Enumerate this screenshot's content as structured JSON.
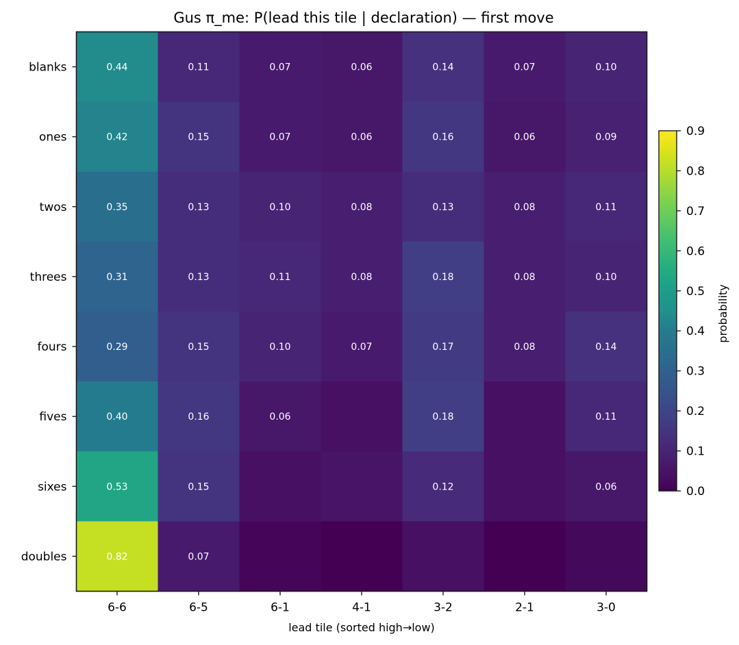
{
  "chart_data": {
    "type": "heatmap",
    "title": "Gus π_me: P(lead this tile | declaration) — first move",
    "xlabel": "lead tile (sorted high→low)",
    "ylabel": "",
    "x_categories": [
      "6-6",
      "6-5",
      "6-1",
      "4-1",
      "3-2",
      "2-1",
      "3-0"
    ],
    "y_categories": [
      "blanks",
      "ones",
      "twos",
      "threes",
      "fours",
      "fives",
      "sixes",
      "doubles"
    ],
    "values": [
      [
        0.44,
        0.11,
        0.07,
        0.06,
        0.14,
        0.07,
        0.1
      ],
      [
        0.42,
        0.15,
        0.07,
        0.06,
        0.16,
        0.06,
        0.09
      ],
      [
        0.35,
        0.13,
        0.1,
        0.08,
        0.13,
        0.08,
        0.11
      ],
      [
        0.31,
        0.13,
        0.11,
        0.08,
        0.18,
        0.08,
        0.1
      ],
      [
        0.29,
        0.15,
        0.1,
        0.07,
        0.17,
        0.08,
        0.14
      ],
      [
        0.4,
        0.16,
        0.06,
        0.04,
        0.18,
        0.04,
        0.11
      ],
      [
        0.53,
        0.15,
        0.04,
        0.05,
        0.12,
        0.04,
        0.06
      ],
      [
        0.82,
        0.07,
        0.01,
        0.0,
        0.04,
        0.0,
        0.02
      ]
    ],
    "cell_labels": [
      [
        "0.44",
        "0.11",
        "0.07",
        "0.06",
        "0.14",
        "0.07",
        "0.10"
      ],
      [
        "0.42",
        "0.15",
        "0.07",
        "0.06",
        "0.16",
        "0.06",
        "0.09"
      ],
      [
        "0.35",
        "0.13",
        "0.10",
        "0.08",
        "0.13",
        "0.08",
        "0.11"
      ],
      [
        "0.31",
        "0.13",
        "0.11",
        "0.08",
        "0.18",
        "0.08",
        "0.10"
      ],
      [
        "0.29",
        "0.15",
        "0.10",
        "0.07",
        "0.17",
        "0.08",
        "0.14"
      ],
      [
        "0.40",
        "0.16",
        "0.06",
        "",
        "0.18",
        "",
        "0.11"
      ],
      [
        "0.53",
        "0.15",
        "",
        "",
        "0.12",
        "",
        "0.06"
      ],
      [
        "0.82",
        "0.07",
        "",
        "",
        "",
        "",
        ""
      ]
    ],
    "colormap": "viridis",
    "vmin": 0.0,
    "vmax": 0.9,
    "colorbar": {
      "label": "probability",
      "ticks": [
        "0.0",
        "0.1",
        "0.2",
        "0.3",
        "0.4",
        "0.5",
        "0.6",
        "0.7",
        "0.8",
        "0.9"
      ],
      "tick_values": [
        0.0,
        0.1,
        0.2,
        0.3,
        0.4,
        0.5,
        0.6,
        0.7,
        0.8,
        0.9
      ],
      "placement": "right"
    },
    "grid": false
  }
}
